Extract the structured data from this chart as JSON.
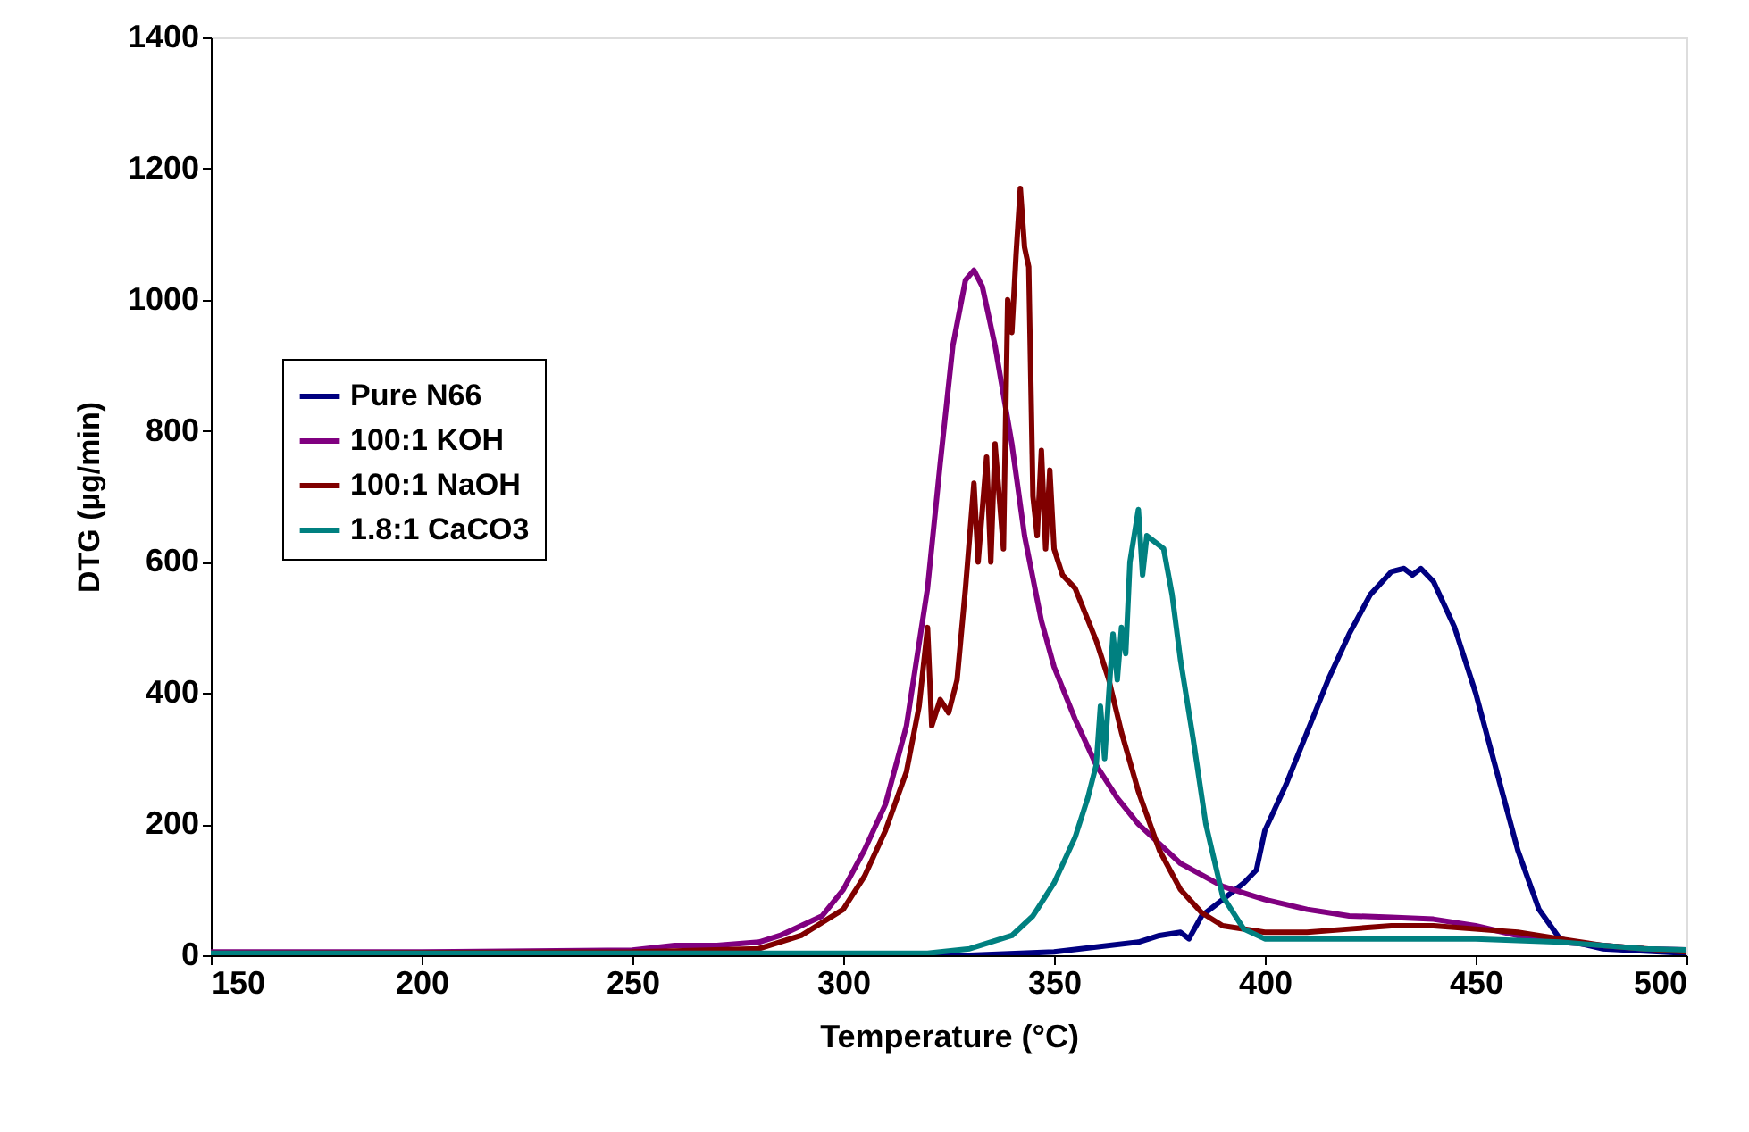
{
  "chart_data": {
    "type": "line",
    "xlabel": "Temperature (°C)",
    "ylabel": "DTG (µg/min)",
    "xlim": [
      150,
      500
    ],
    "xticks": [
      150,
      200,
      250,
      300,
      350,
      400,
      450,
      500
    ],
    "ylim": [
      0,
      1400
    ],
    "yticks": [
      0,
      200,
      400,
      600,
      800,
      1000,
      1200,
      1400
    ],
    "grid": false,
    "legend": "left",
    "marker": "none",
    "line_style": "solid",
    "series": [
      {
        "name": "Pure N66",
        "color": "#000080",
        "x": [
          150,
          250,
          330,
          350,
          370,
          375,
          380,
          382,
          385,
          390,
          393,
          395,
          398,
          400,
          405,
          410,
          415,
          420,
          425,
          430,
          433,
          435,
          437,
          440,
          445,
          450,
          455,
          460,
          465,
          470,
          480,
          500
        ],
        "values": [
          0,
          0,
          0,
          5,
          20,
          30,
          35,
          25,
          60,
          85,
          100,
          110,
          130,
          190,
          260,
          340,
          420,
          490,
          550,
          585,
          590,
          580,
          590,
          570,
          500,
          400,
          280,
          160,
          70,
          25,
          10,
          3
        ]
      },
      {
        "name": "100:1 KOH",
        "color": "#800080",
        "x": [
          150,
          200,
          250,
          260,
          270,
          280,
          285,
          295,
          300,
          305,
          310,
          315,
          320,
          323,
          326,
          329,
          331,
          333,
          336,
          340,
          343,
          347,
          350,
          355,
          360,
          365,
          370,
          375,
          380,
          390,
          400,
          410,
          420,
          430,
          440,
          450,
          460,
          470,
          480,
          490,
          500
        ],
        "values": [
          5,
          5,
          8,
          15,
          15,
          20,
          30,
          60,
          100,
          160,
          230,
          350,
          560,
          750,
          930,
          1030,
          1045,
          1020,
          930,
          780,
          640,
          510,
          440,
          360,
          290,
          240,
          200,
          170,
          140,
          105,
          85,
          70,
          60,
          58,
          55,
          45,
          30,
          20,
          15,
          10,
          8
        ]
      },
      {
        "name": "100:1 NaOH",
        "color": "#800000",
        "x": [
          150,
          250,
          280,
          290,
          300,
          305,
          310,
          315,
          318,
          320,
          321,
          323,
          325,
          327,
          329,
          331,
          332,
          334,
          335,
          336,
          338,
          339,
          340,
          341,
          342,
          343,
          344,
          345,
          346,
          347,
          348,
          349,
          350,
          352,
          355,
          360,
          363,
          366,
          370,
          375,
          380,
          385,
          390,
          400,
          410,
          420,
          430,
          440,
          450,
          460,
          470,
          480,
          500
        ],
        "values": [
          3,
          5,
          10,
          30,
          70,
          120,
          190,
          280,
          380,
          500,
          350,
          390,
          370,
          420,
          560,
          720,
          600,
          760,
          600,
          780,
          620,
          1000,
          950,
          1070,
          1170,
          1080,
          1050,
          700,
          640,
          770,
          620,
          740,
          620,
          580,
          560,
          480,
          420,
          340,
          250,
          160,
          100,
          65,
          45,
          35,
          35,
          40,
          45,
          45,
          40,
          35,
          25,
          15,
          5
        ]
      },
      {
        "name": "1.8:1 CaCO3",
        "color": "#008080",
        "x": [
          150,
          250,
          320,
          330,
          340,
          345,
          350,
          355,
          358,
          360,
          361,
          362,
          363,
          364,
          365,
          366,
          367,
          368,
          370,
          371,
          372,
          374,
          376,
          378,
          380,
          383,
          386,
          390,
          395,
          400,
          410,
          430,
          450,
          470,
          490,
          500
        ],
        "values": [
          3,
          3,
          3,
          10,
          30,
          60,
          110,
          180,
          240,
          290,
          380,
          300,
          400,
          490,
          420,
          500,
          460,
          600,
          680,
          580,
          640,
          630,
          620,
          550,
          450,
          330,
          200,
          90,
          40,
          25,
          25,
          25,
          25,
          20,
          10,
          8
        ]
      }
    ]
  }
}
